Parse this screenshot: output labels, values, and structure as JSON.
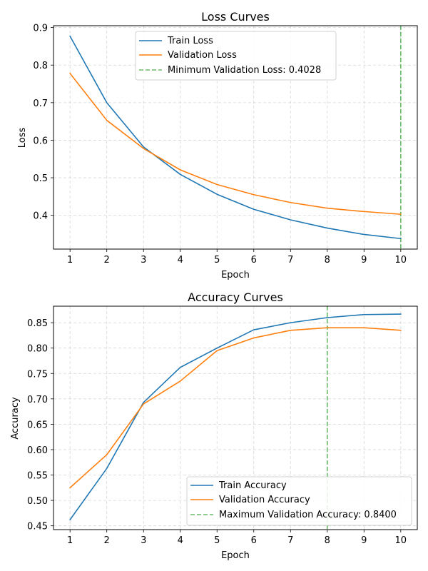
{
  "chart_data": [
    {
      "type": "line",
      "title": "Loss Curves",
      "xlabel": "Epoch",
      "ylabel": "Loss",
      "xlim": [
        0.55,
        10.45
      ],
      "ylim": [
        0.31,
        0.905
      ],
      "grid": true,
      "legend_position": "upper-center",
      "x": [
        1,
        2,
        3,
        4,
        5,
        6,
        7,
        8,
        9,
        10
      ],
      "xticks": [
        "1",
        "2",
        "3",
        "4",
        "5",
        "6",
        "7",
        "8",
        "9",
        "10"
      ],
      "yticks": [
        0.4,
        0.5,
        0.6,
        0.7,
        0.8,
        0.9
      ],
      "ytick_labels": [
        "0.4",
        "0.5",
        "0.6",
        "0.7",
        "0.8",
        "0.9"
      ],
      "series": [
        {
          "name": "Train Loss",
          "color": "#1f77b4",
          "values": [
            0.877,
            0.7,
            0.582,
            0.509,
            0.456,
            0.416,
            0.388,
            0.366,
            0.349,
            0.338
          ]
        },
        {
          "name": "Validation Loss",
          "color": "#ff7f0e",
          "values": [
            0.778,
            0.653,
            0.578,
            0.521,
            0.482,
            0.455,
            0.434,
            0.419,
            0.41,
            0.4028
          ]
        }
      ],
      "vline": {
        "x": 10,
        "color": "#2ca02c",
        "label": "Minimum Validation Loss: 0.4028"
      }
    },
    {
      "type": "line",
      "title": "Accuracy Curves",
      "xlabel": "Epoch",
      "ylabel": "Accuracy",
      "xlim": [
        0.55,
        10.45
      ],
      "ylim": [
        0.4425,
        0.8825
      ],
      "grid": true,
      "legend_position": "lower-right",
      "x": [
        1,
        2,
        3,
        4,
        5,
        6,
        7,
        8,
        9,
        10
      ],
      "xticks": [
        "1",
        "2",
        "3",
        "4",
        "5",
        "6",
        "7",
        "8",
        "9",
        "10"
      ],
      "yticks": [
        0.45,
        0.5,
        0.55,
        0.6,
        0.65,
        0.7,
        0.75,
        0.8,
        0.85
      ],
      "ytick_labels": [
        "0.45",
        "0.50",
        "0.55",
        "0.60",
        "0.65",
        "0.70",
        "0.75",
        "0.80",
        "0.85"
      ],
      "series": [
        {
          "name": "Train Accuracy",
          "color": "#1f77b4",
          "values": [
            0.462,
            0.563,
            0.693,
            0.762,
            0.8,
            0.836,
            0.85,
            0.86,
            0.866,
            0.867
          ]
        },
        {
          "name": "Validation Accuracy",
          "color": "#ff7f0e",
          "values": [
            0.525,
            0.59,
            0.69,
            0.735,
            0.795,
            0.82,
            0.835,
            0.84,
            0.84,
            0.835
          ]
        }
      ],
      "vline": {
        "x": 8,
        "color": "#2ca02c",
        "label": "Maximum Validation Accuracy: 0.8400"
      }
    }
  ]
}
